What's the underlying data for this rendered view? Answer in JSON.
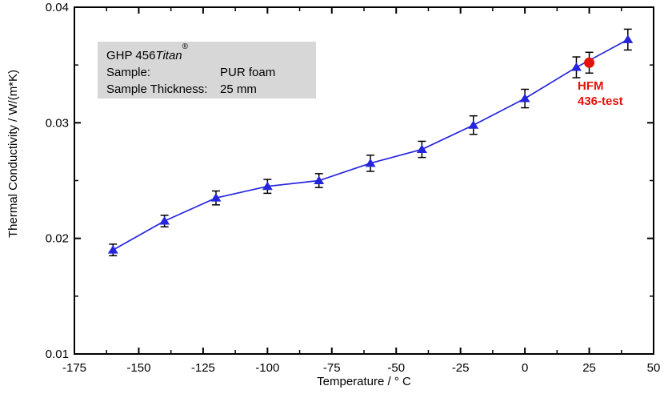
{
  "page": {
    "background": "#ffffff"
  },
  "info_box": {
    "bg": "#d7d7d7",
    "line1_prefix": "GHP 456 ",
    "line1_italic": "Titan",
    "line1_sup": "®",
    "rows": [
      {
        "label": "Sample:",
        "value": "PUR foam"
      },
      {
        "label": "Sample Thickness:",
        "value": "25 mm"
      }
    ]
  },
  "hfm_annotation": {
    "line1": "HFM",
    "line2": "436-test",
    "color": "#e3120b"
  },
  "chart_data": {
    "type": "line",
    "title": "",
    "xlabel": "Temperature / ° C",
    "ylabel": "Thermal Conductivity / W/(m*K)",
    "xlim": [
      -175,
      50
    ],
    "ylim": [
      0.01,
      0.04
    ],
    "grid": false,
    "legend_position": "none",
    "frame_color": "#000000",
    "error_bar_color": "#000000",
    "x_major_ticks": [
      -175,
      -150,
      -125,
      -100,
      -75,
      -50,
      -25,
      0,
      25,
      50
    ],
    "x_major_tick_labels": [
      "-175",
      "-150",
      "-125",
      "-100",
      "-75",
      "-50",
      "-25",
      "0",
      "25",
      "50"
    ],
    "x_minor_ticks": [
      -162.5,
      -137.5,
      -112.5,
      -87.5,
      -62.5,
      -37.5,
      -12.5,
      12.5,
      37.5
    ],
    "y_major_ticks": [
      0.01,
      0.02,
      0.03,
      0.04
    ],
    "y_major_tick_labels": [
      "0.01",
      "0.02",
      "0.03",
      "0.04"
    ],
    "y_minor_ticks": [
      0.015,
      0.025,
      0.035
    ],
    "series": [
      {
        "name": "GHP 456 Titan (PUR foam)",
        "marker": "triangle-up",
        "color": "#2525dd",
        "line": true,
        "x": [
          -160,
          -140,
          -120,
          -100,
          -80,
          -60,
          -40,
          -20,
          0,
          20,
          40
        ],
        "y": [
          0.019,
          0.0215,
          0.0235,
          0.0245,
          0.025,
          0.0265,
          0.0277,
          0.0298,
          0.0321,
          0.0348,
          0.0372
        ],
        "yerr": [
          0.0005,
          0.0005,
          0.0006,
          0.0006,
          0.0006,
          0.0007,
          0.0007,
          0.0008,
          0.0008,
          0.0009,
          0.0009
        ]
      },
      {
        "name": "HFM 436-test",
        "marker": "circle",
        "color": "#e3120b",
        "line": false,
        "x": [
          25
        ],
        "y": [
          0.0352
        ],
        "yerr": [
          0.0009
        ]
      }
    ]
  }
}
